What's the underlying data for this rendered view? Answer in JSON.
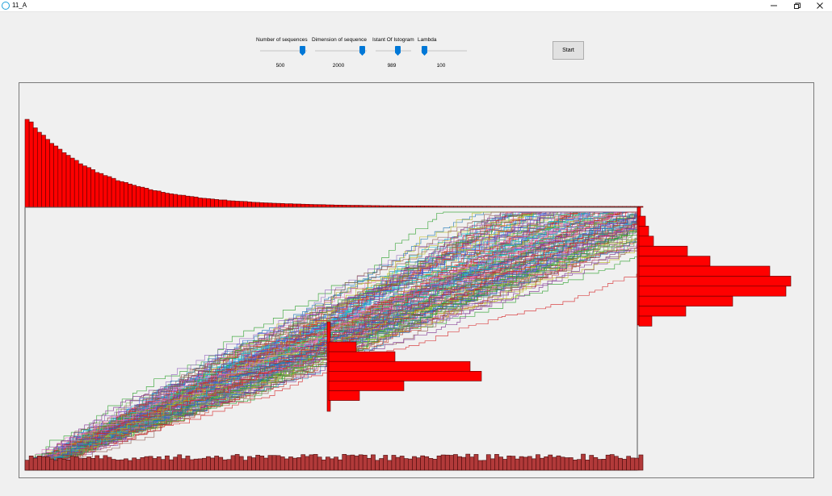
{
  "window": {
    "title": "11_A",
    "controls": {
      "minimize_icon": "minimize-icon",
      "restore_icon": "restore-icon",
      "close_icon": "close-icon"
    }
  },
  "controls": {
    "sliders": [
      {
        "label": "Number of sequences",
        "value": "500",
        "level": 0.9
      },
      {
        "label": "Dimension of sequence",
        "value": "2000",
        "level": 0.95
      },
      {
        "label": "Istant Of Istogram",
        "value": "989",
        "level": 0.5
      },
      {
        "label": "Lambda",
        "value": "100",
        "level": 0.05
      }
    ],
    "start_label": "Start"
  },
  "colors": {
    "histogram_fill": "#ff0000",
    "histogram_stroke": "#5a0000",
    "path_palette": [
      "#7e2f8e",
      "#2ca02c",
      "#1f77b4",
      "#d62728",
      "#9467bd",
      "#17becf",
      "#bcbd22",
      "#8c564b",
      "#e377c2",
      "#6ab04c",
      "#3b5bdb",
      "#c0392b"
    ]
  }
}
